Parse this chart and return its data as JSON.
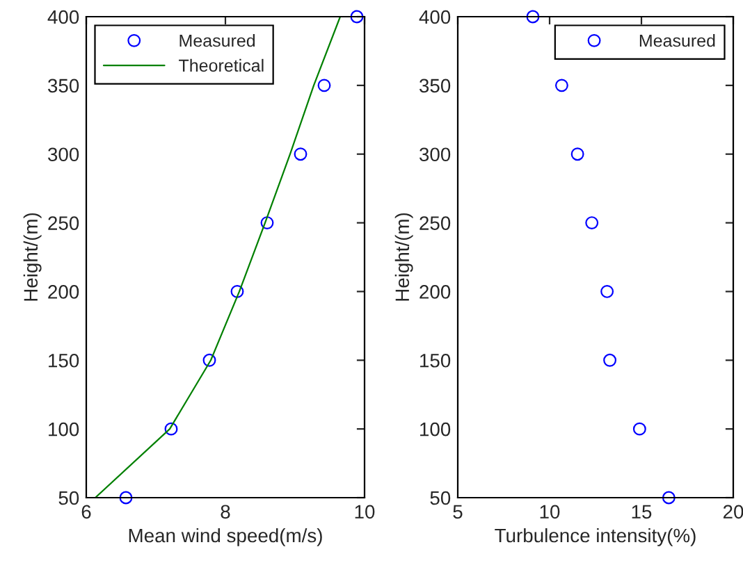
{
  "chart_data": [
    {
      "type": "scatter",
      "xlabel": "Mean wind speed(m/s)",
      "ylabel": "Height/(m)",
      "xlim": [
        6,
        10
      ],
      "xticks": [
        6,
        8,
        10
      ],
      "ylim": [
        50,
        400
      ],
      "yticks": [
        50,
        100,
        150,
        200,
        250,
        300,
        350,
        400
      ],
      "legend": "top left",
      "grid": false,
      "series": [
        {
          "name": "Measured",
          "marker": "circle",
          "color": "#0000ff",
          "x": [
            6.57,
            7.22,
            7.77,
            8.17,
            8.6,
            9.08,
            9.42,
            9.89
          ],
          "values": [
            50,
            100,
            150,
            200,
            250,
            300,
            350,
            400
          ]
        },
        {
          "name": "Theoretical",
          "type": "line",
          "color": "#008000",
          "x": [
            6.13,
            7.2,
            7.79,
            8.2,
            8.57,
            8.93,
            9.27,
            9.65
          ],
          "values": [
            50,
            100,
            150,
            200,
            250,
            300,
            350,
            400
          ]
        }
      ]
    },
    {
      "type": "scatter",
      "xlabel": "Turbulence intensity(%)",
      "ylabel": "Height/(m)",
      "xlim": [
        5,
        20
      ],
      "xticks": [
        5,
        10,
        15,
        20
      ],
      "ylim": [
        50,
        400
      ],
      "yticks": [
        50,
        100,
        150,
        200,
        250,
        300,
        350,
        400
      ],
      "legend": "top right",
      "marker": "circle",
      "grid": false,
      "series": [
        {
          "name": "Measured",
          "color": "#0000ff",
          "x": [
            16.49,
            14.9,
            13.28,
            13.13,
            12.3,
            11.52,
            10.66,
            9.09
          ],
          "values": [
            50,
            100,
            150,
            200,
            250,
            300,
            350,
            400
          ]
        }
      ]
    }
  ]
}
